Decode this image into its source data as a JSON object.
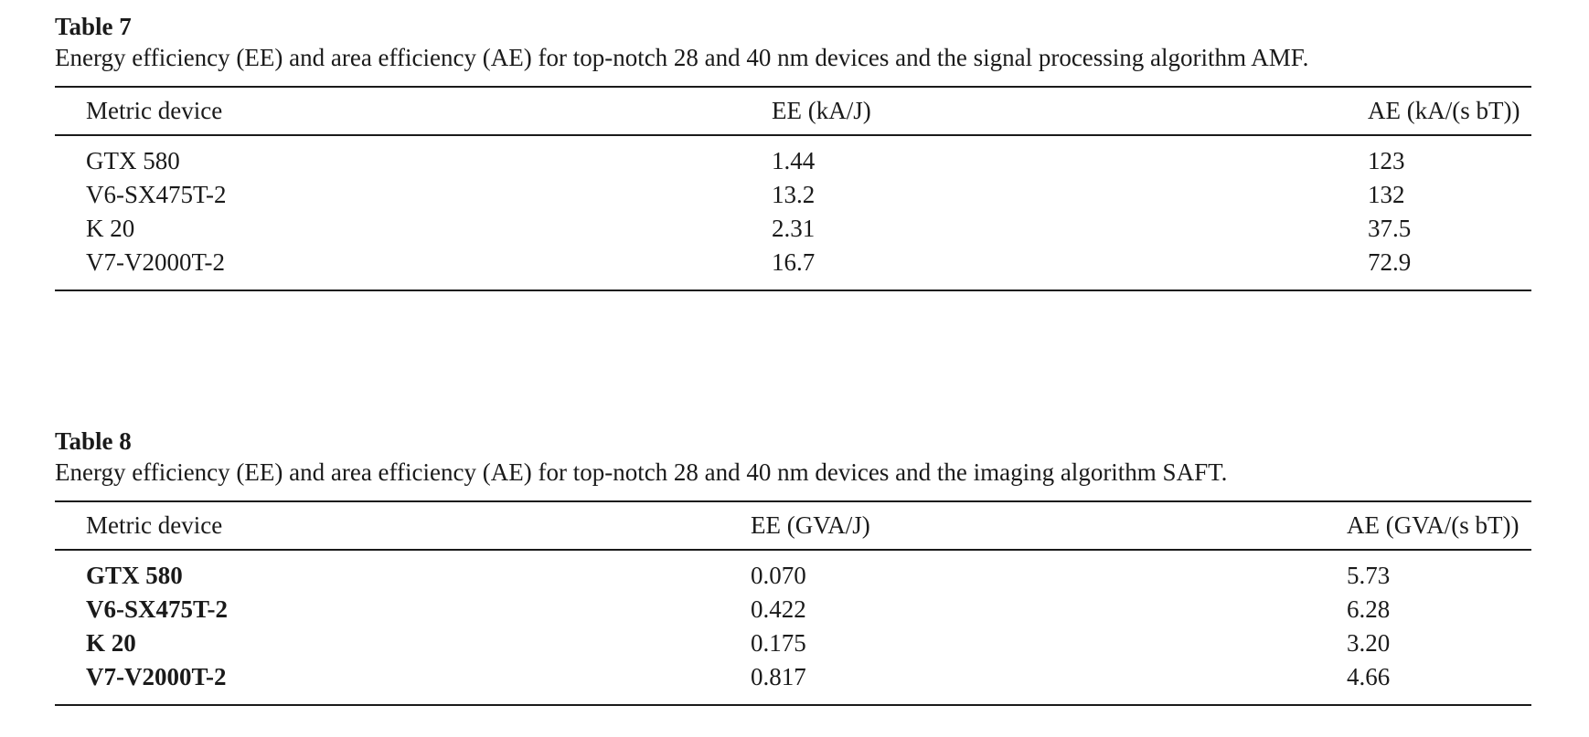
{
  "table7": {
    "label": "Table 7",
    "caption": "Energy efficiency (EE) and area efficiency (AE) for top-notch 28 and 40 nm devices and the signal processing algorithm AMF.",
    "columns": [
      "Metric device",
      "EE (kA/J)",
      "AE (kA/(s bT))"
    ],
    "rows": [
      {
        "device": "GTX 580",
        "ee": "1.44",
        "ae": "123"
      },
      {
        "device": "V6-SX475T-2",
        "ee": "13.2",
        "ae": "132"
      },
      {
        "device": "K 20",
        "ee": "2.31",
        "ae": "37.5"
      },
      {
        "device": "V7-V2000T-2",
        "ee": "16.7",
        "ae": "72.9"
      }
    ]
  },
  "table8": {
    "label": "Table 8",
    "caption": "Energy efficiency (EE) and area efficiency (AE) for top-notch 28 and 40 nm devices and the imaging algorithm SAFT.",
    "columns": [
      "Metric device",
      "EE (GVA/J)",
      "AE (GVA/(s bT))"
    ],
    "rows": [
      {
        "device": "GTX 580",
        "ee": "0.070",
        "ae": "5.73"
      },
      {
        "device": "V6-SX475T-2",
        "ee": "0.422",
        "ae": "6.28"
      },
      {
        "device": "K 20",
        "ee": "0.175",
        "ae": "3.20"
      },
      {
        "device": "V7-V2000T-2",
        "ee": "0.817",
        "ae": "4.66"
      }
    ]
  }
}
